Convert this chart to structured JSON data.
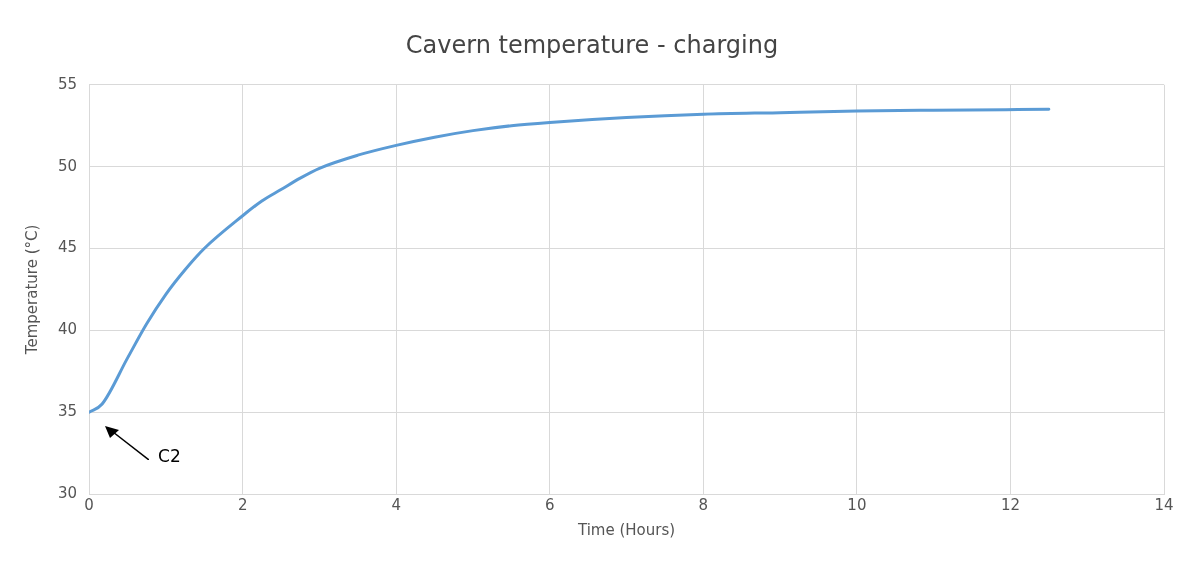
{
  "chart_data": {
    "type": "line",
    "title": "Cavern temperature - charging",
    "xlabel": "Time (Hours)",
    "ylabel": "Temperature (°C)",
    "x": [
      0,
      0.17,
      0.5,
      0.75,
      1,
      1.25,
      1.5,
      2,
      2.25,
      2.5,
      2.75,
      3,
      3.5,
      4,
      4.5,
      5,
      5.5,
      6,
      7,
      8,
      9,
      10,
      11,
      12.5
    ],
    "series": [
      {
        "color": "#5b9bd5",
        "values": [
          35,
          35.5,
          38.3,
          40.4,
          42.2,
          43.7,
          45,
          47,
          47.9,
          48.6,
          49.3,
          49.9,
          50.7,
          51.3,
          51.8,
          52.2,
          52.5,
          52.7,
          53,
          53.2,
          53.3,
          53.4,
          53.45,
          53.5
        ]
      }
    ],
    "xlim": [
      0,
      14
    ],
    "xticks": [
      0,
      2,
      4,
      6,
      8,
      10,
      12,
      14
    ],
    "ylim": [
      30,
      55
    ],
    "yticks": [
      30,
      35,
      40,
      45,
      50,
      55
    ],
    "grid": true,
    "legend": false,
    "marker": "none",
    "line_style": "solid",
    "annotations": [
      "C2"
    ]
  }
}
